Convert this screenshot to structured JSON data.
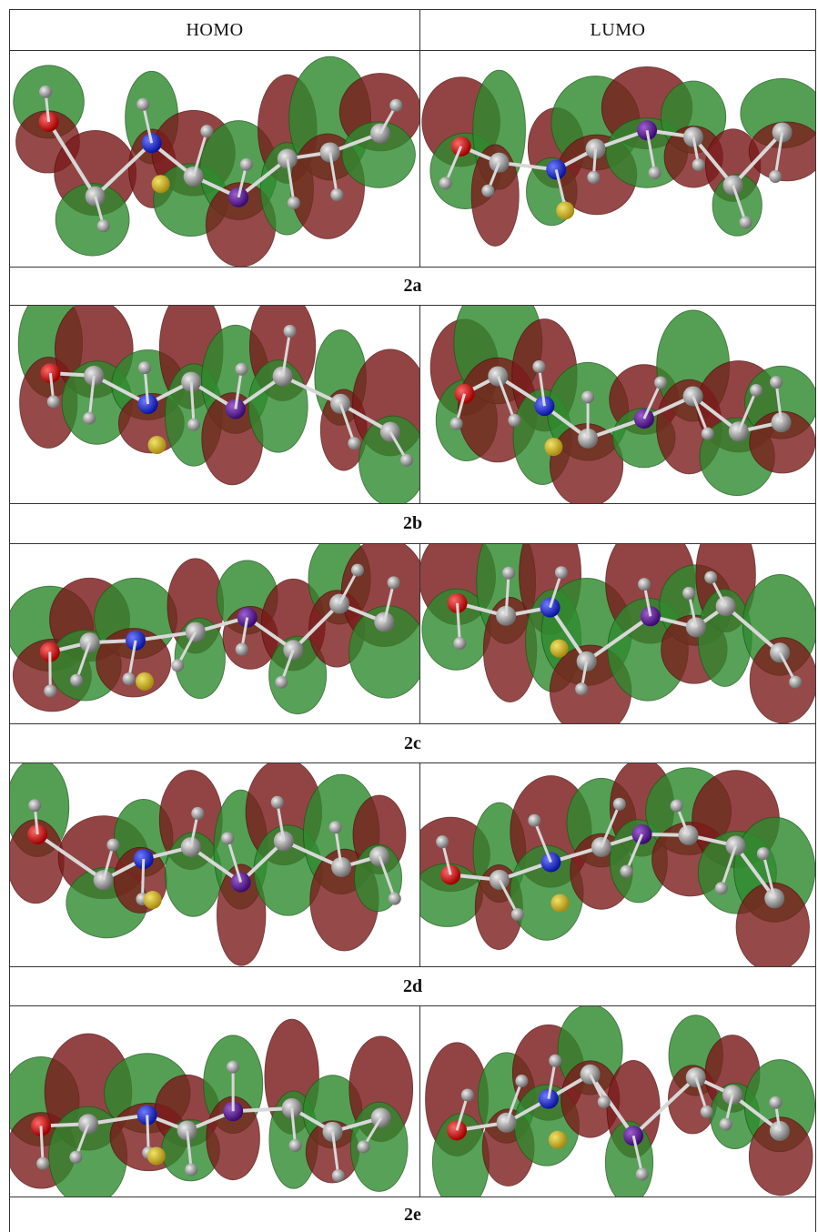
{
  "table": {
    "columns": [
      "HOMO",
      "LUMO"
    ],
    "rows": [
      {
        "label": "2a"
      },
      {
        "label": "2b"
      },
      {
        "label": "2c"
      },
      {
        "label": "2d"
      },
      {
        "label": "2e"
      }
    ]
  }
}
